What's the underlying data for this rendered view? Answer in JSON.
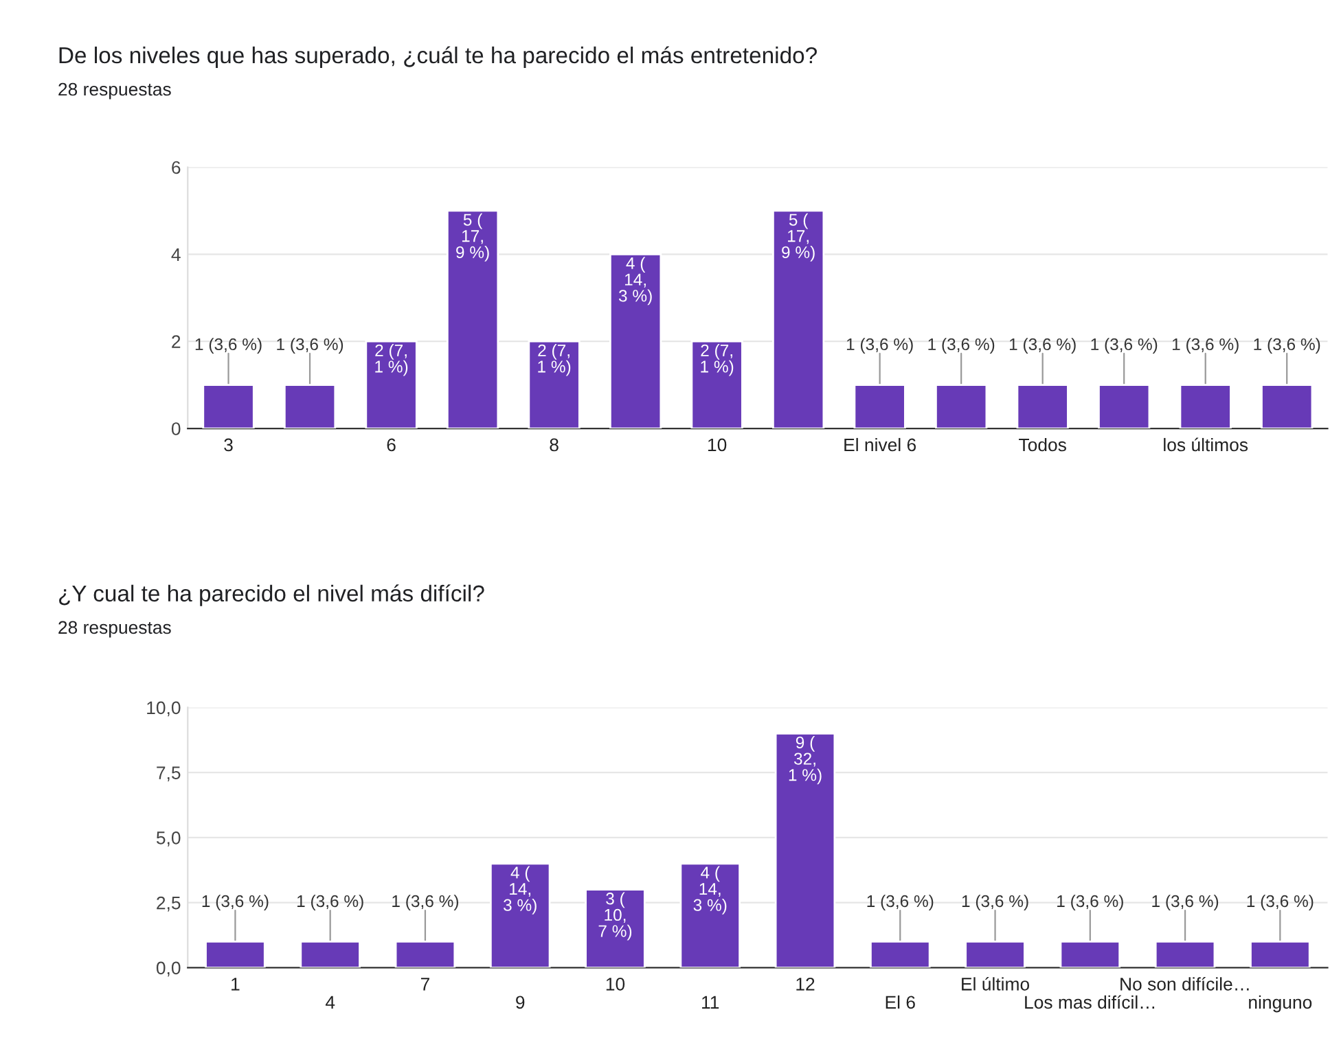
{
  "chart_data": [
    {
      "type": "bar",
      "title": "De los niveles que has superado, ¿cuál te ha parecido el más entretenido?",
      "subtitle": "28 respuestas",
      "categories": [
        "3",
        null,
        "6",
        null,
        "8",
        null,
        "10",
        null,
        "El nivel 6",
        null,
        "Todos",
        null,
        "los últimos",
        null
      ],
      "values": [
        1,
        1,
        2,
        5,
        2,
        4,
        2,
        5,
        1,
        1,
        1,
        1,
        1,
        1
      ],
      "value_labels": [
        "1 (3,6 %)",
        "1 (3,6 %)",
        "2 (7,\n1 %)",
        "5 (\n17,\n9 %)",
        "2 (7,\n1 %)",
        "4 (\n14,\n3 %)",
        "2 (7,\n1 %)",
        "5 (\n17,\n9 %)",
        "1 (3,6 %)",
        "1 (3,6 %)",
        "1 (3,6 %)",
        "1 (3,6 %)",
        "1 (3,6 %)",
        "1 (3,6 %)"
      ],
      "color": "#673ab7",
      "ylim": [
        0,
        6
      ],
      "yticks": [
        0,
        2,
        4,
        6
      ],
      "grid": "y"
    },
    {
      "type": "bar",
      "title": "¿Y cual te ha parecido el nivel más difícil?",
      "subtitle": "28 respuestas",
      "categories": [
        "1",
        "4",
        "7",
        "9",
        "10",
        "11",
        "12",
        "El 6",
        "El último",
        "Los mas difícil…",
        "No son difícile…",
        "ninguno"
      ],
      "values": [
        1,
        1,
        1,
        4,
        3,
        4,
        9,
        1,
        1,
        1,
        1,
        1
      ],
      "value_labels": [
        "1 (3,6 %)",
        "1 (3,6 %)",
        "1 (3,6 %)",
        "4 (\n14,\n3 %)",
        "3 (\n10,\n7 %)",
        "4 (\n14,\n3 %)",
        "9 (\n32,\n1 %)",
        "1 (3,6 %)",
        "1 (3,6 %)",
        "1 (3,6 %)",
        "1 (3,6 %)",
        "1 (3,6 %)"
      ],
      "color": "#673ab7",
      "ylim": [
        0,
        10
      ],
      "yticks": [
        {
          "value": 0,
          "label": "0,0"
        },
        {
          "value": 2.5,
          "label": "2,5"
        },
        {
          "value": 5,
          "label": "5,0"
        },
        {
          "value": 7.5,
          "label": "7,5"
        },
        {
          "value": 10,
          "label": "10,0"
        }
      ],
      "grid": "y"
    }
  ]
}
